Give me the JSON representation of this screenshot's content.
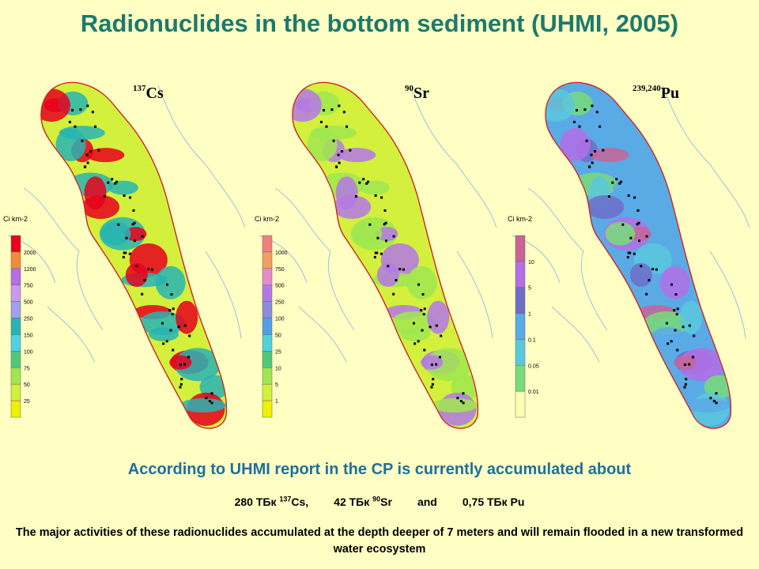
{
  "title": "Radionuclides in the bottom sediment (UHMI, 2005)",
  "maps": [
    {
      "isotope": {
        "mass": "137",
        "symbol": "Cs"
      },
      "legend": {
        "unit": "Ci km-2",
        "ticks": [
          "2000",
          "1200",
          "750",
          "500",
          "250",
          "150",
          "100",
          "75",
          "50",
          "25"
        ],
        "colors": [
          "#e8001c",
          "#f08c3c",
          "#b46ee6",
          "#c89bf0",
          "#a0a0f0",
          "#28b4b4",
          "#50d2e6",
          "#50c878",
          "#a0e650",
          "#d2f03c",
          "#f0f000"
        ]
      }
    },
    {
      "isotope": {
        "mass": "90",
        "symbol": "Sr"
      },
      "legend": {
        "unit": "Ci km-2",
        "ticks": [
          "1000",
          "750",
          "500",
          "250",
          "100",
          "50",
          "25",
          "10",
          "5",
          "1"
        ],
        "colors": [
          "#f08080",
          "#f0a060",
          "#e68cc8",
          "#b478e6",
          "#8c8cdc",
          "#50a0e6",
          "#50d2dc",
          "#50c878",
          "#a0e650",
          "#d2f03c",
          "#f0f000"
        ]
      }
    },
    {
      "isotope": {
        "mass": "239,240",
        "symbol": "Pu"
      },
      "legend": {
        "unit": "Ci km-2",
        "ticks": [
          "10",
          "5",
          "1",
          "0.1",
          "0.05",
          "0.01"
        ],
        "colors": [
          "#c86496",
          "#b46ee6",
          "#6e6ec8",
          "#5aaae6",
          "#5ac8dc",
          "#78dc78",
          "#ffffb4"
        ]
      }
    }
  ],
  "summary": {
    "headline": "According to  UHMI report in the CP is currently accumulated about",
    "amounts": [
      {
        "value": "280 ТБк",
        "mass": "137",
        "symbol": "Cs,"
      },
      {
        "value": "42 ТБк",
        "mass": "90",
        "symbol": "Sr"
      },
      {
        "value": "and"
      },
      {
        "value": "0,75 ТБк Pu"
      }
    ],
    "note": "The major activities of these radionuclides accumulated at the depth deeper of 7 meters and will remain flooded in a new transformed water ecosystem"
  }
}
